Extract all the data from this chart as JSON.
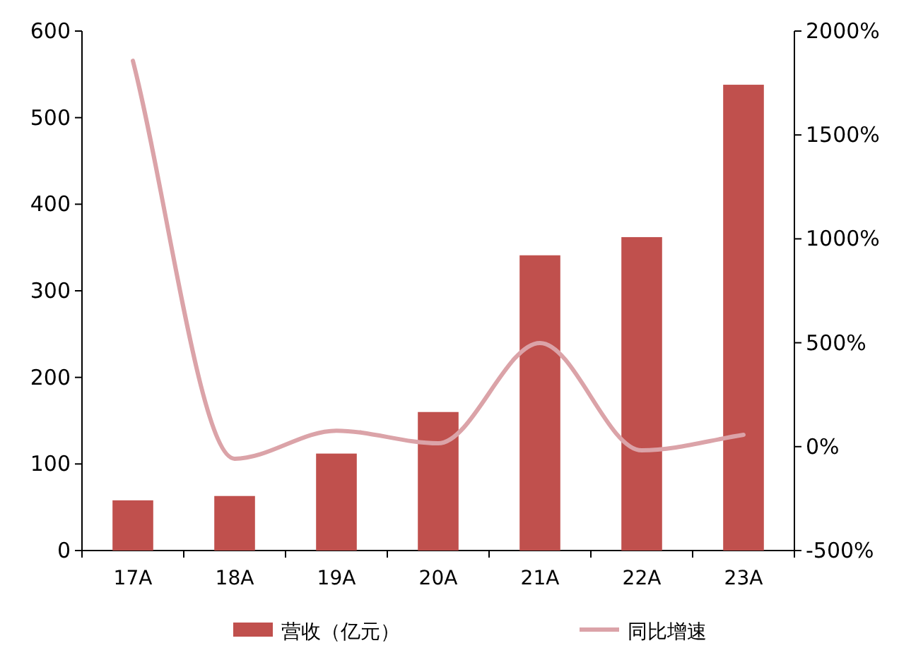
{
  "chart_data": {
    "type": "bar",
    "categories": [
      "17A",
      "18A",
      "19A",
      "20A",
      "21A",
      "22A",
      "23A"
    ],
    "series": [
      {
        "name": "营收（亿元）",
        "color": "#c0504d",
        "values": [
          58,
          63,
          112,
          160,
          341,
          362,
          538
        ]
      },
      {
        "name": "同比增速",
        "type": "line",
        "axis": "y2",
        "color": "#dba3a8",
        "values": [
          1857,
          -58,
          77,
          16,
          499,
          -18,
          57
        ]
      }
    ],
    "ylim": [
      0,
      600
    ],
    "yticks": [
      0,
      100,
      200,
      300,
      400,
      500,
      600
    ],
    "y2lim": [
      -500,
      2000
    ],
    "y2ticks": [
      {
        "value": -500,
        "label": "-500%"
      },
      {
        "value": 0,
        "label": "0%"
      },
      {
        "value": 500,
        "label": "500%"
      },
      {
        "value": 1000,
        "label": "1000%"
      },
      {
        "value": 1500,
        "label": "1500%"
      },
      {
        "value": 2000,
        "label": "2000%"
      }
    ],
    "grid": false,
    "legend": "bottom",
    "marker": "none",
    "line_style": "solid"
  }
}
